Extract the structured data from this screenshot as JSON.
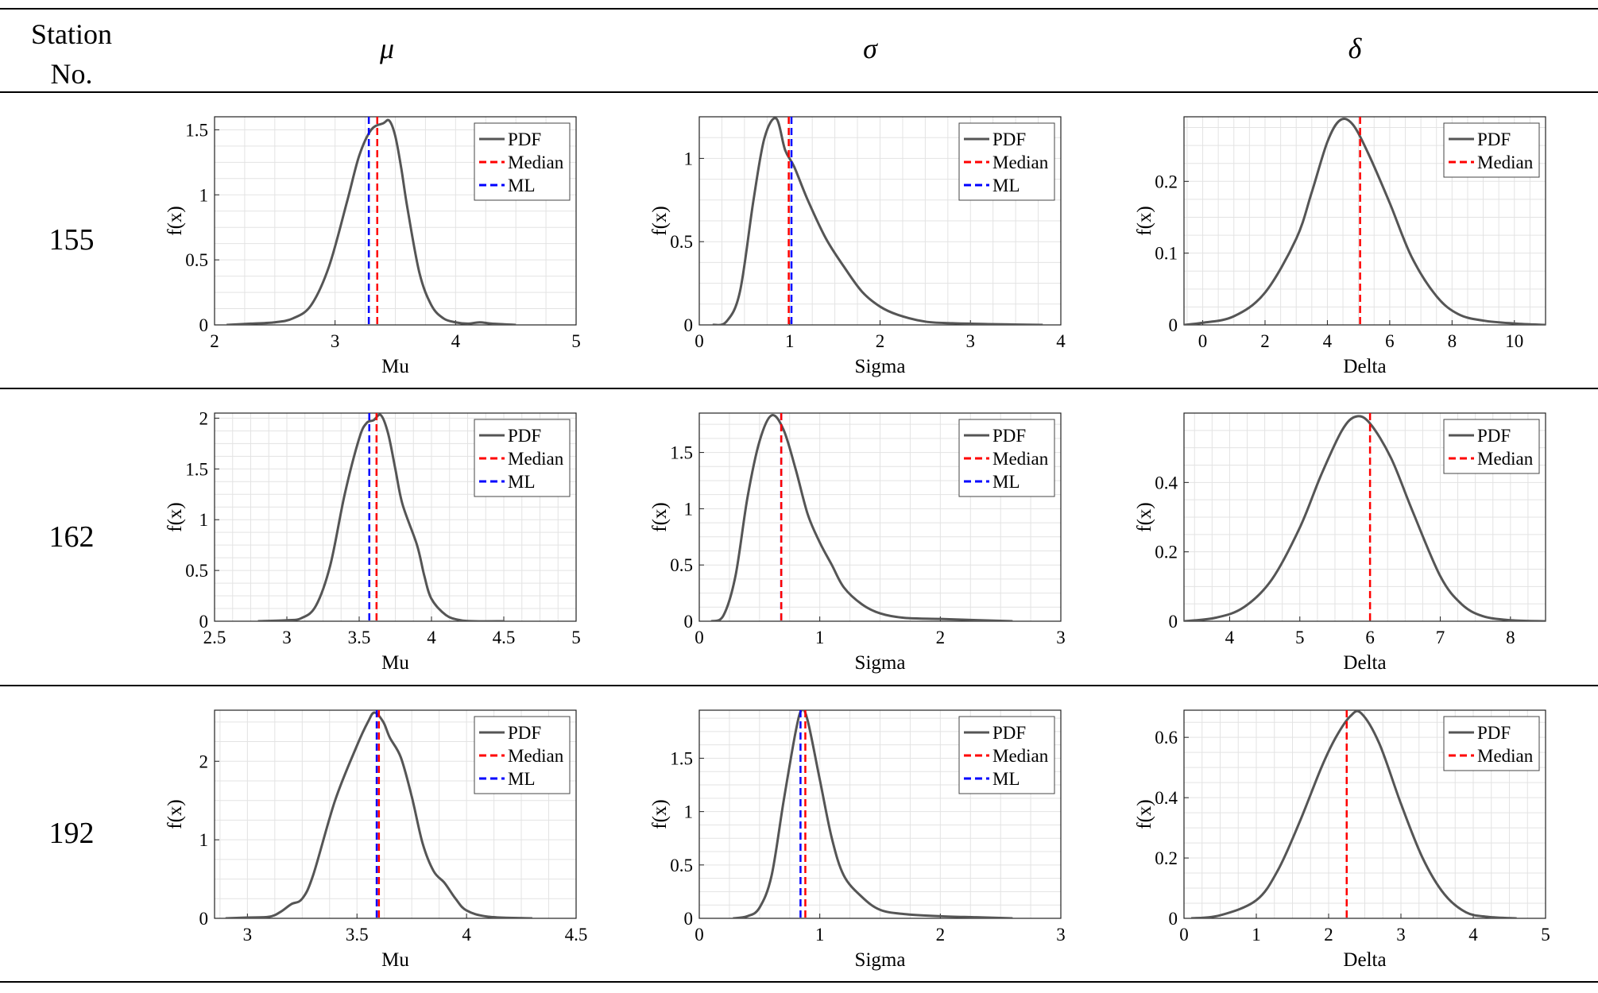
{
  "header": {
    "station_line1": "Station",
    "station_line2": "No.",
    "mu": "μ",
    "sigma": "σ",
    "delta": "δ"
  },
  "rows": [
    {
      "station": "155"
    },
    {
      "station": "162"
    },
    {
      "station": "192"
    }
  ],
  "colors": {
    "pdf": "#555555",
    "median": "#ff0000",
    "ml": "#0000ff",
    "grid": "#e3e3e3"
  },
  "chart_data": [
    {
      "type": "line",
      "station": "155",
      "param": "mu",
      "xlabel": "Mu",
      "ylabel": "f(x)",
      "xlim": [
        2,
        5
      ],
      "ylim": [
        0,
        1.6
      ],
      "xticks": [
        2,
        3,
        4,
        5
      ],
      "yticks": [
        0,
        0.5,
        1,
        1.5
      ],
      "legend": [
        "PDF",
        "Median",
        "ML"
      ],
      "median": 3.35,
      "ml": 3.28,
      "x": [
        2.1,
        2.3,
        2.5,
        2.65,
        2.8,
        2.95,
        3.1,
        3.2,
        3.3,
        3.4,
        3.45,
        3.5,
        3.55,
        3.6,
        3.7,
        3.8,
        3.9,
        4.0,
        4.1,
        4.2,
        4.3,
        4.5
      ],
      "y": [
        0,
        0.01,
        0.02,
        0.05,
        0.15,
        0.45,
        0.95,
        1.3,
        1.5,
        1.55,
        1.57,
        1.45,
        1.2,
        0.9,
        0.4,
        0.15,
        0.05,
        0.02,
        0.01,
        0.02,
        0.01,
        0
      ]
    },
    {
      "type": "line",
      "station": "155",
      "param": "sigma",
      "xlabel": "Sigma",
      "ylabel": "f(x)",
      "xlim": [
        0,
        4
      ],
      "ylim": [
        0,
        1.25
      ],
      "xticks": [
        0,
        1,
        2,
        3,
        4
      ],
      "yticks": [
        0,
        0.5,
        1
      ],
      "legend": [
        "PDF",
        "Median",
        "ML"
      ],
      "median": 0.99,
      "ml": 1.02,
      "x": [
        0.15,
        0.3,
        0.45,
        0.6,
        0.72,
        0.85,
        0.95,
        1.05,
        1.2,
        1.4,
        1.6,
        1.8,
        2.0,
        2.2,
        2.5,
        2.8,
        3.2,
        3.8
      ],
      "y": [
        0,
        0.02,
        0.2,
        0.75,
        1.12,
        1.24,
        1.05,
        0.95,
        0.75,
        0.52,
        0.35,
        0.2,
        0.11,
        0.06,
        0.02,
        0.01,
        0.005,
        0
      ]
    },
    {
      "type": "line",
      "station": "155",
      "param": "delta",
      "xlabel": "Delta",
      "ylabel": "f(x)",
      "xlim": [
        -0.6,
        11
      ],
      "ylim": [
        0,
        0.29
      ],
      "xticks": [
        0,
        2,
        4,
        6,
        8,
        10
      ],
      "yticks": [
        0,
        0.1,
        0.2
      ],
      "legend": [
        "PDF",
        "Median"
      ],
      "median": 5.05,
      "x": [
        -0.6,
        0,
        1,
        2,
        3,
        3.5,
        4,
        4.4,
        4.8,
        5.3,
        6,
        6.7,
        7.5,
        8.2,
        9,
        10,
        11
      ],
      "y": [
        0,
        0.003,
        0.012,
        0.045,
        0.12,
        0.185,
        0.255,
        0.285,
        0.28,
        0.24,
        0.17,
        0.095,
        0.04,
        0.015,
        0.006,
        0.002,
        0
      ]
    },
    {
      "type": "line",
      "station": "162",
      "param": "mu",
      "xlabel": "Mu",
      "ylabel": "f(x)",
      "xlim": [
        2.5,
        5
      ],
      "ylim": [
        0,
        2.05
      ],
      "xticks": [
        2.5,
        3,
        3.5,
        4,
        4.5,
        5
      ],
      "yticks": [
        0,
        0.5,
        1,
        1.5,
        2
      ],
      "legend": [
        "PDF",
        "Median",
        "ML"
      ],
      "median": 3.62,
      "ml": 3.57,
      "x": [
        2.8,
        3.0,
        3.1,
        3.2,
        3.3,
        3.4,
        3.5,
        3.55,
        3.6,
        3.65,
        3.7,
        3.75,
        3.8,
        3.9,
        3.95,
        4.0,
        4.1,
        4.2,
        4.3,
        4.5
      ],
      "y": [
        0,
        0.01,
        0.03,
        0.15,
        0.55,
        1.25,
        1.8,
        1.95,
        1.98,
        2.03,
        1.85,
        1.5,
        1.15,
        0.75,
        0.45,
        0.22,
        0.06,
        0.01,
        0,
        0
      ]
    },
    {
      "type": "line",
      "station": "162",
      "param": "sigma",
      "xlabel": "Sigma",
      "ylabel": "f(x)",
      "xlim": [
        0,
        3
      ],
      "ylim": [
        0,
        1.85
      ],
      "xticks": [
        0,
        1,
        2,
        3
      ],
      "yticks": [
        0,
        0.5,
        1,
        1.5
      ],
      "legend": [
        "PDF",
        "Median",
        "ML"
      ],
      "median": 0.68,
      "ml": 0.68,
      "x": [
        0.1,
        0.2,
        0.3,
        0.4,
        0.5,
        0.6,
        0.7,
        0.8,
        0.9,
        1.0,
        1.1,
        1.2,
        1.35,
        1.5,
        1.7,
        2.0,
        2.3,
        2.6
      ],
      "y": [
        0,
        0.05,
        0.4,
        1.1,
        1.6,
        1.83,
        1.7,
        1.35,
        0.95,
        0.7,
        0.5,
        0.3,
        0.15,
        0.07,
        0.03,
        0.02,
        0.01,
        0
      ]
    },
    {
      "type": "line",
      "station": "162",
      "param": "delta",
      "xlabel": "Delta",
      "ylabel": "f(x)",
      "xlim": [
        3.35,
        8.5
      ],
      "ylim": [
        0,
        0.6
      ],
      "xticks": [
        4,
        5,
        6,
        7,
        8
      ],
      "yticks": [
        0,
        0.2,
        0.4
      ],
      "legend": [
        "PDF",
        "Median"
      ],
      "median": 6.0,
      "x": [
        3.35,
        3.8,
        4.2,
        4.6,
        5.0,
        5.3,
        5.6,
        5.8,
        6.0,
        6.3,
        6.6,
        7.0,
        7.3,
        7.6,
        8.0,
        8.5
      ],
      "y": [
        0,
        0.01,
        0.04,
        0.12,
        0.27,
        0.42,
        0.55,
        0.59,
        0.57,
        0.47,
        0.32,
        0.13,
        0.05,
        0.015,
        0.003,
        0
      ]
    },
    {
      "type": "line",
      "station": "192",
      "param": "mu",
      "xlabel": "Mu",
      "ylabel": "f(x)",
      "xlim": [
        2.85,
        4.5
      ],
      "ylim": [
        0,
        2.65
      ],
      "xticks": [
        3,
        3.5,
        4,
        4.5
      ],
      "yticks": [
        0,
        1,
        2
      ],
      "legend": [
        "PDF",
        "Median",
        "ML"
      ],
      "median": 3.6,
      "ml": 3.59,
      "x": [
        2.9,
        3.0,
        3.1,
        3.15,
        3.2,
        3.25,
        3.3,
        3.4,
        3.5,
        3.55,
        3.58,
        3.62,
        3.65,
        3.7,
        3.75,
        3.8,
        3.85,
        3.9,
        3.95,
        4.0,
        4.1,
        4.3
      ],
      "y": [
        0,
        0.01,
        0.02,
        0.08,
        0.18,
        0.25,
        0.55,
        1.5,
        2.2,
        2.5,
        2.62,
        2.5,
        2.3,
        2.05,
        1.55,
        0.95,
        0.6,
        0.45,
        0.25,
        0.1,
        0.02,
        0
      ]
    },
    {
      "type": "line",
      "station": "192",
      "param": "sigma",
      "xlabel": "Sigma",
      "ylabel": "f(x)",
      "xlim": [
        0,
        3
      ],
      "ylim": [
        0,
        1.95
      ],
      "xticks": [
        0,
        1,
        2,
        3
      ],
      "yticks": [
        0,
        0.5,
        1,
        1.5
      ],
      "legend": [
        "PDF",
        "Median",
        "ML"
      ],
      "median": 0.88,
      "ml": 0.84,
      "x": [
        0.28,
        0.4,
        0.5,
        0.6,
        0.7,
        0.8,
        0.85,
        0.9,
        1.0,
        1.1,
        1.2,
        1.35,
        1.5,
        1.7,
        2.0,
        2.3,
        2.6
      ],
      "y": [
        0,
        0.02,
        0.1,
        0.4,
        1.1,
        1.75,
        1.95,
        1.85,
        1.3,
        0.75,
        0.4,
        0.2,
        0.08,
        0.04,
        0.02,
        0.01,
        0
      ]
    },
    {
      "type": "line",
      "station": "192",
      "param": "delta",
      "xlabel": "Delta",
      "ylabel": "f(x)",
      "xlim": [
        0,
        5
      ],
      "ylim": [
        0,
        0.69
      ],
      "xticks": [
        0,
        1,
        2,
        3,
        4,
        5
      ],
      "yticks": [
        0,
        0.2,
        0.4,
        0.6
      ],
      "legend": [
        "PDF",
        "Median"
      ],
      "median": 2.25,
      "x": [
        0.1,
        0.5,
        1.0,
        1.3,
        1.6,
        1.9,
        2.1,
        2.3,
        2.45,
        2.7,
        3.0,
        3.3,
        3.6,
        3.9,
        4.2,
        4.6
      ],
      "y": [
        0,
        0.01,
        0.06,
        0.16,
        0.32,
        0.5,
        0.6,
        0.67,
        0.68,
        0.58,
        0.38,
        0.2,
        0.08,
        0.02,
        0.005,
        0
      ]
    }
  ]
}
